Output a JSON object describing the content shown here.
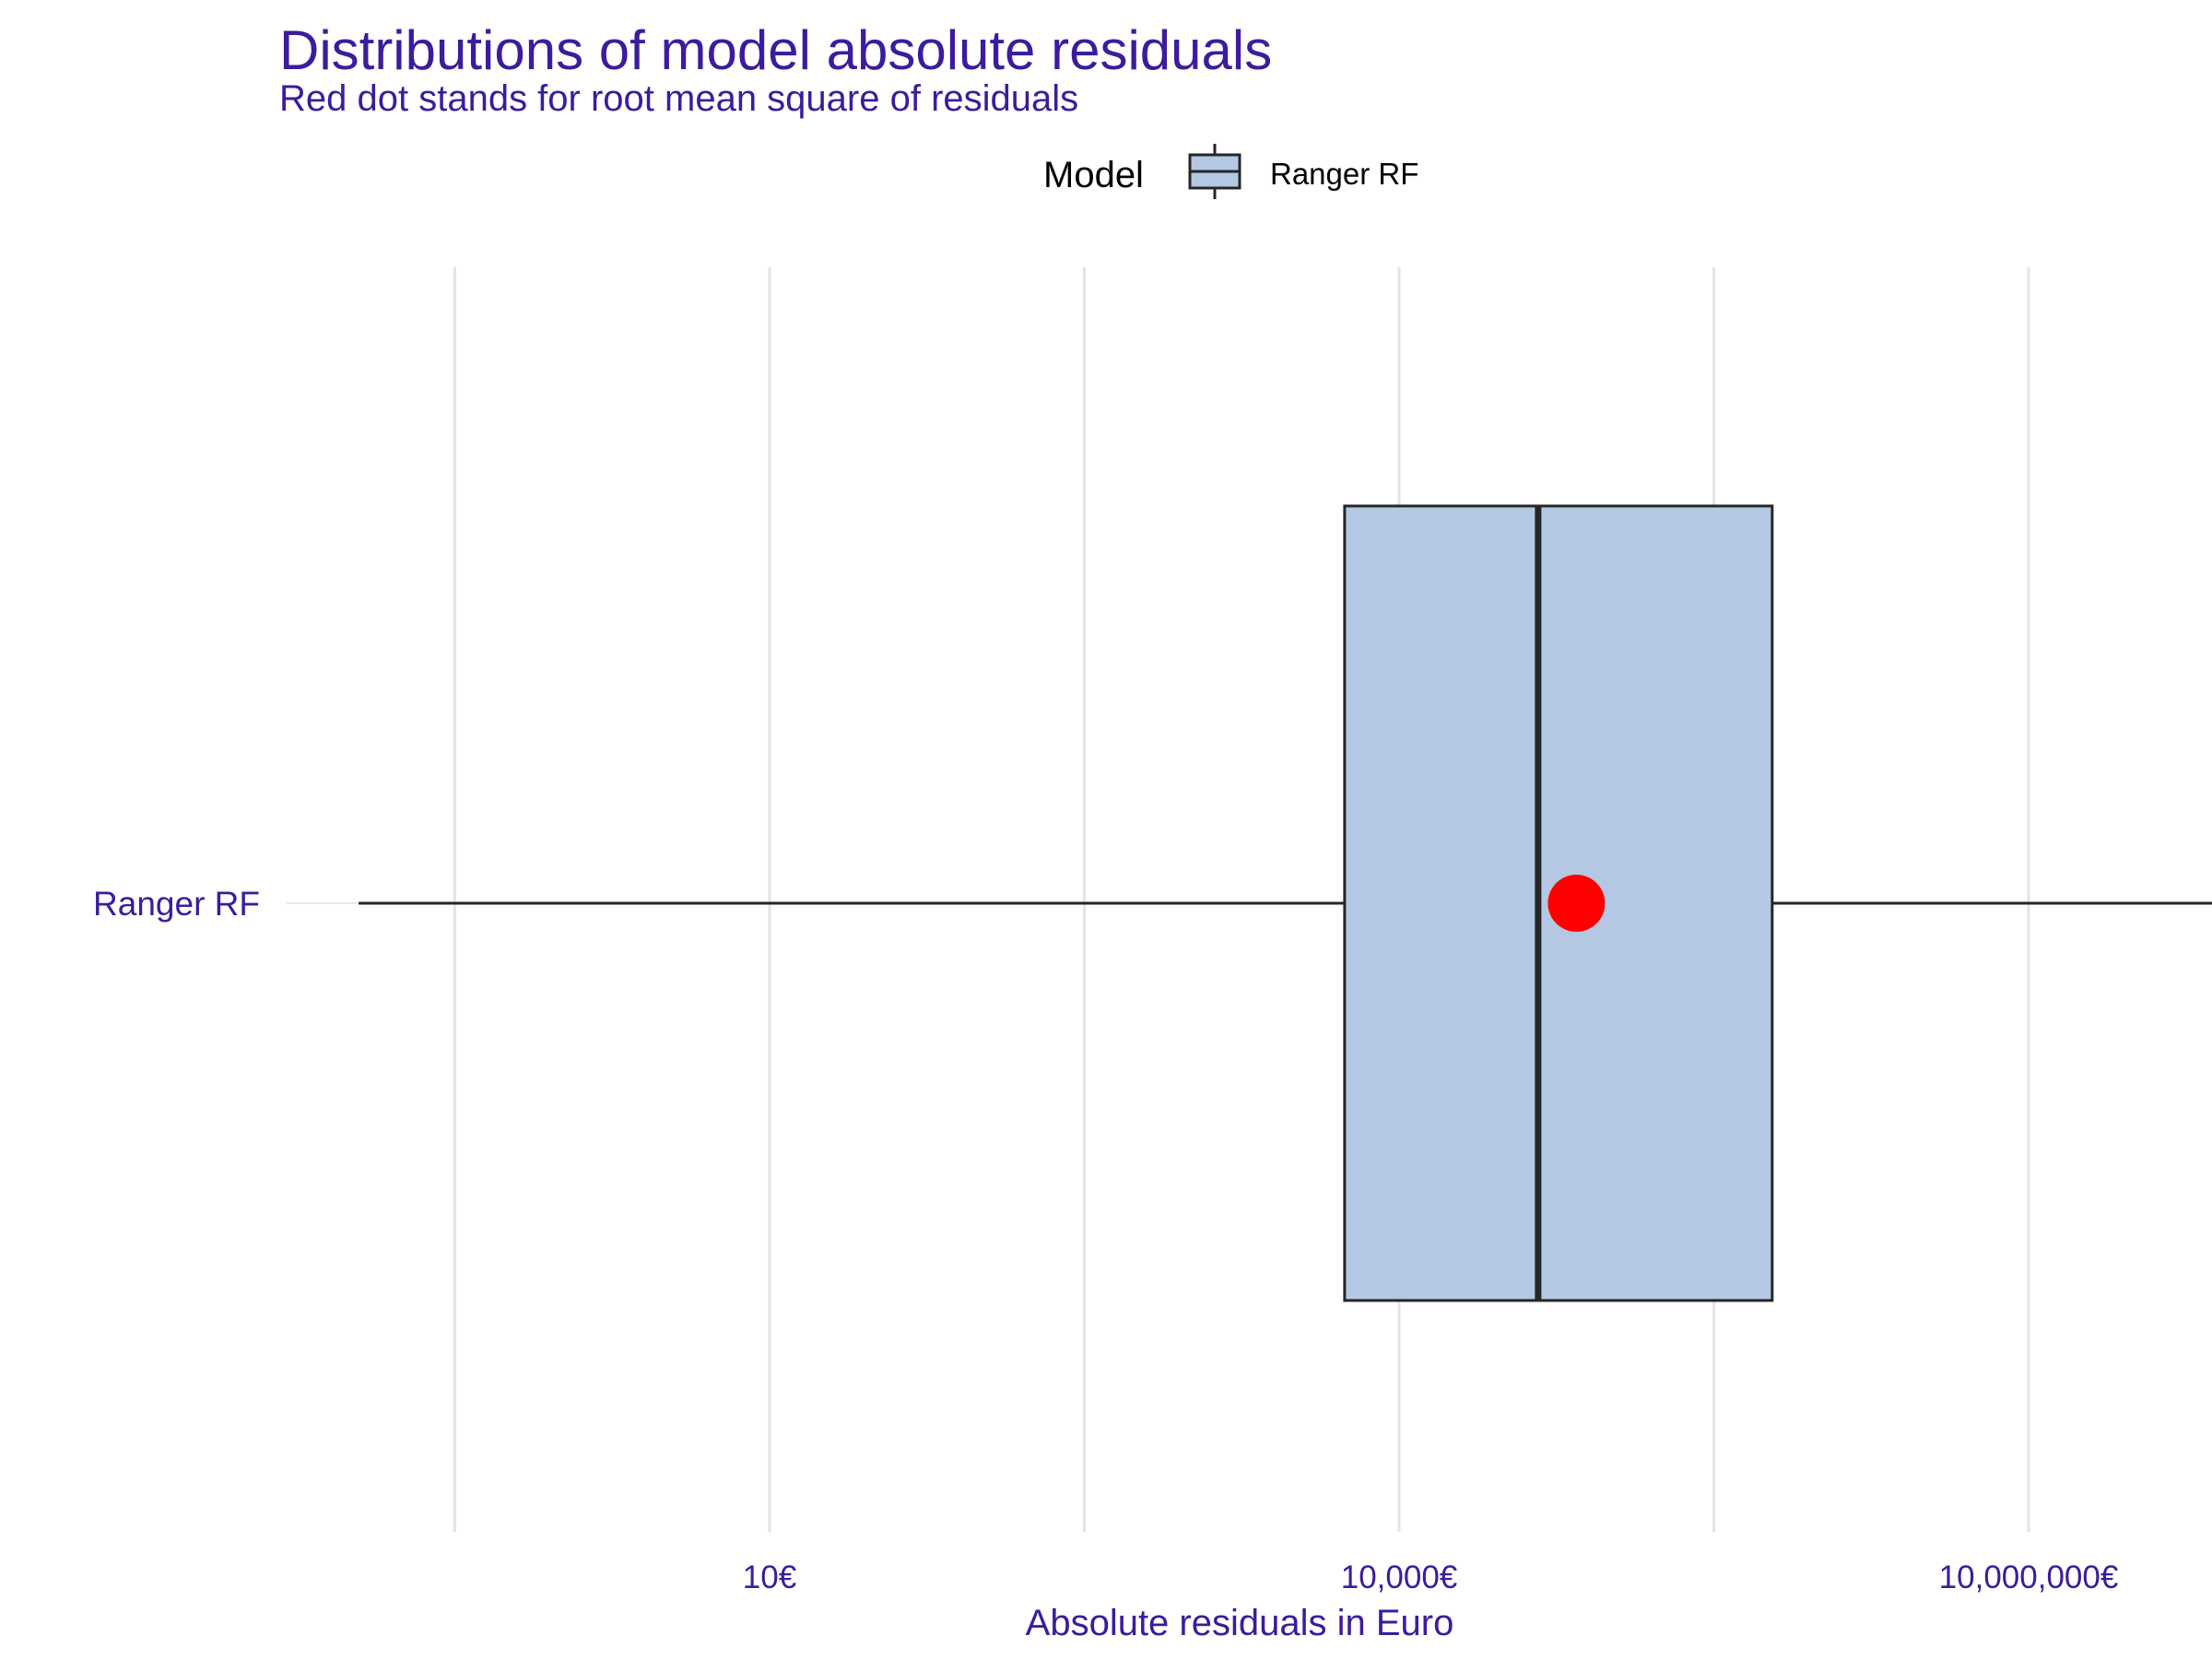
{
  "chart_data": {
    "type": "boxplot",
    "title": "Distributions of model absolute residuals",
    "subtitle": "Red dot stands for root mean square of residuals",
    "xlabel": "Absolute residuals in Euro",
    "ylabel": "",
    "x_scale": "log10",
    "x_range": [
      0.11,
      130000000
    ],
    "x_ticks": [
      {
        "value": 10,
        "label": "10€"
      },
      {
        "value": 10000,
        "label": "10,000€"
      },
      {
        "value": 10000000,
        "label": "10,000,000€"
      }
    ],
    "minor_gridlines": [
      0.316,
      316.2,
      316228
    ],
    "legend": {
      "title": "Model",
      "position": "top",
      "entries": [
        "Ranger RF"
      ]
    },
    "categories": [
      "Ranger RF"
    ],
    "series": [
      {
        "name": "Ranger RF",
        "whisker_low": 0.11,
        "q1": 5500,
        "median": 46000,
        "q3": 600000,
        "whisker_high": 120000000,
        "rmse": 70000,
        "fill": "#b4c8e4",
        "stroke": "#262626"
      }
    ],
    "rmse_color": "#ff0000",
    "text_color": "#3b1c9e"
  }
}
